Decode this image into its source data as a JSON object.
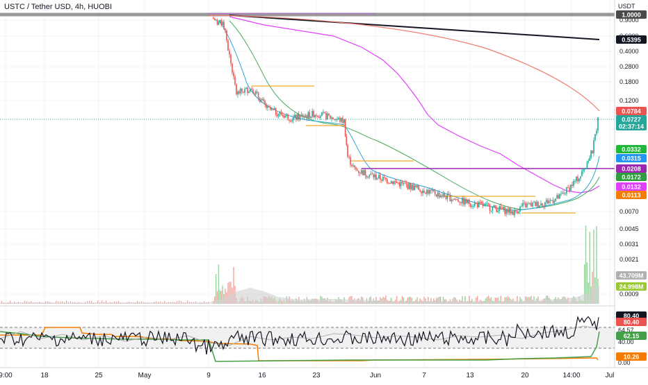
{
  "header": {
    "symbol_title": "USTC / Tether USD, 4h, HUOBI",
    "currency_label": "USDT"
  },
  "price_axis": {
    "ticks": [
      "0.9000",
      "0.6000",
      "0.4000",
      "0.2800",
      "0.1800",
      "0.1200",
      "0.0070",
      "0.0045",
      "0.0031",
      "0.0021",
      "0.0009"
    ],
    "badges": [
      {
        "label": "1.0000",
        "color": "#4a4a4a"
      },
      {
        "label": "0.5395",
        "color": "#131722"
      },
      {
        "label": "0.0784",
        "color": "#ef5350"
      },
      {
        "label": "0.0727",
        "color": "#26a69a"
      },
      {
        "label": "02:37:14",
        "color": "#26a69a"
      },
      {
        "label": "0.0332",
        "color": "#1fb839"
      },
      {
        "label": "0.0315",
        "color": "#2196f3"
      },
      {
        "label": "0.0208",
        "color": "#9c27b0"
      },
      {
        "label": "0.0172",
        "color": "#2e9e3e"
      },
      {
        "label": "0.0132",
        "color": "#e040fb"
      },
      {
        "label": "0.0113",
        "color": "#f57c00"
      },
      {
        "label": "43.709M",
        "color": "#b0b0b0"
      },
      {
        "label": "24.998M",
        "color": "#9bc934"
      }
    ]
  },
  "oscillator_axis": {
    "ticks": [
      "64.57",
      "40.00",
      "0.00"
    ],
    "badges": [
      {
        "label": "80.40",
        "color": "#131722"
      },
      {
        "label": "80.40",
        "color": "#ef5350"
      },
      {
        "label": "62.15",
        "color": "#43a047"
      },
      {
        "label": "10.26",
        "color": "#f57c00"
      }
    ]
  },
  "time_axis": {
    "ticks": [
      "9:00",
      "18",
      "25",
      "May",
      "9",
      "16",
      "23",
      "Jun",
      "7",
      "13",
      "20",
      "14:00",
      "Jul"
    ]
  },
  "chart_data": {
    "type": "candlestick",
    "title": "USTC / Tether USD, 4h, HUOBI",
    "y_scale": "log",
    "ylim": [
      0.0009,
      1.0
    ],
    "price_segments": [
      [
        "May 9",
        0.92
      ],
      [
        "May 11",
        0.75
      ],
      [
        "May 12",
        0.14
      ],
      [
        "May 14",
        0.16
      ],
      [
        "May 16",
        0.095
      ],
      [
        "May 19",
        0.075
      ],
      [
        "May 22",
        0.085
      ],
      [
        "May 25",
        0.07
      ],
      [
        "May 26",
        0.029
      ],
      [
        "May 29",
        0.021
      ],
      [
        "Jun 2",
        0.017
      ],
      [
        "Jun 7",
        0.0125
      ],
      [
        "Jun 12",
        0.0095
      ],
      [
        "Jun 18",
        0.0072
      ],
      [
        "Jun 19",
        0.0085
      ],
      [
        "Jun 22",
        0.009
      ],
      [
        "Jun 24",
        0.0105
      ],
      [
        "Jun 26",
        0.018
      ],
      [
        "Jun 27",
        0.0332
      ],
      [
        "Jun 28",
        0.0727
      ]
    ],
    "last_price": 0.0727,
    "oscillator_last": 80.4
  }
}
